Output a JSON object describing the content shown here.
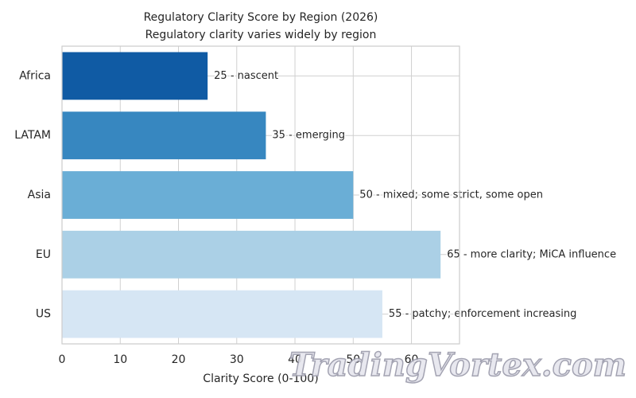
{
  "chart_data": {
    "type": "barh",
    "title": "Regulatory Clarity Score by Region (2026)",
    "subtitle": "Regulatory clarity varies widely by region",
    "x_label": "Clarity Score (0-100)",
    "categories": [
      "Africa",
      "LATAM",
      "Asia",
      "EU",
      "US"
    ],
    "values": [
      25,
      35,
      50,
      65,
      55
    ],
    "value_labels": [
      "25 - nascent",
      "35 - emerging",
      "50 - mixed; some strict, some open",
      "65 - more clarity; MiCA influence",
      "55 - patchy; enforcement increasing"
    ],
    "colors": [
      "#105ba4",
      "#3787c0",
      "#6aaed6",
      "#abd0e6",
      "#d6e6f4"
    ],
    "xlim": [
      0,
      68.25
    ],
    "xticks": [
      0,
      10,
      20,
      30,
      40,
      50,
      60
    ],
    "grid": true,
    "watermark": "TradingVortex.com"
  }
}
